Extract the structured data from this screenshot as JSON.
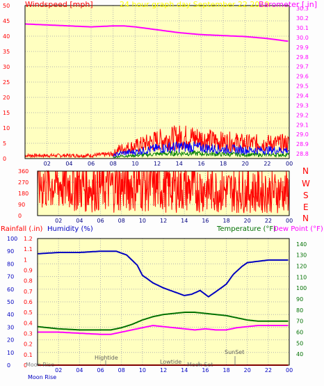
{
  "colors": {
    "plot_bg": "#ffffc0",
    "frame": "#000000",
    "grid": "#b0b0b0",
    "wind": "#ff0000",
    "gust_blue": "#0000ff",
    "gust_green": "#008000",
    "baro": "#ff00ff",
    "humidity": "#0000c0",
    "temperature": "#007000",
    "dewpoint": "#ff00ff",
    "rain": "#ff0000",
    "date": "#ffff00"
  },
  "header": {
    "windspeed_label": "Windspeed [mph]",
    "date_label": "24 hour graph day   September 22 2019",
    "barometer_label": "Barometer [.in]"
  },
  "compass": [
    "N",
    "W",
    "S",
    "E",
    "N"
  ],
  "bottom_header": {
    "rainfall_label": "Rainfall (.in)",
    "humidity_label": "Humidity (%)",
    "temperature_label": "Temperature (°F)",
    "dewpoint_label": "Dew Point (°F)"
  },
  "events": {
    "moon_rise": "Moon Rise",
    "moon_rise_bottom": "Moon Rise",
    "hightide": "Hightide",
    "lowtide": "Lowtide",
    "moon_set": "Moon Set",
    "sunset": "SunSet"
  },
  "chart_data": [
    {
      "type": "line",
      "panel": "wind-and-barometer",
      "x_ticks": [
        "02",
        "04",
        "06",
        "08",
        "10",
        "12",
        "14",
        "16",
        "18",
        "20",
        "22",
        "00"
      ],
      "xlim": [
        0,
        24
      ],
      "y_left": {
        "label": "Windspeed [mph]",
        "ticks": [
          0,
          5,
          10,
          15,
          20,
          25,
          30,
          35,
          40,
          45,
          50
        ],
        "ylim": [
          0,
          50
        ]
      },
      "y_right": {
        "label": "Barometer [.in]",
        "ticks": [
          28.8,
          28.9,
          29.0,
          29.1,
          29.2,
          29.3,
          29.4,
          29.5,
          29.6,
          29.7,
          29.8,
          29.9,
          30.0,
          30.1,
          30.2,
          30.3
        ],
        "ylim": [
          28.75,
          30.33
        ]
      },
      "series": [
        {
          "name": "Windspeed",
          "axis": "left",
          "style": "noisy",
          "noise": 0.6,
          "x": [
            0,
            6,
            8,
            8.5,
            10,
            11,
            12,
            13,
            14,
            15,
            16,
            17,
            18,
            19,
            20,
            21,
            22,
            23,
            24
          ],
          "values": [
            1,
            1,
            1.5,
            3,
            4,
            5,
            6,
            6.5,
            7,
            7,
            6.5,
            6,
            5.5,
            5.5,
            5,
            5,
            5,
            5,
            5
          ]
        },
        {
          "name": "Barometer",
          "axis": "right",
          "style": "smooth",
          "x": [
            0,
            2,
            4,
            6,
            8,
            9,
            10,
            12,
            14,
            16,
            18,
            20,
            22,
            24
          ],
          "values": [
            30.14,
            30.13,
            30.12,
            30.11,
            30.12,
            30.12,
            30.11,
            30.08,
            30.05,
            30.03,
            30.02,
            30.01,
            29.99,
            29.96
          ]
        }
      ]
    },
    {
      "type": "line",
      "panel": "wind-direction",
      "x_ticks": [
        "02",
        "04",
        "06",
        "08",
        "10",
        "12",
        "14",
        "16",
        "18",
        "20",
        "22",
        "00"
      ],
      "xlim": [
        0,
        24
      ],
      "y_left": {
        "ticks": [
          0,
          90,
          180,
          270,
          360
        ],
        "ylim": [
          0,
          360
        ]
      },
      "series": [
        {
          "name": "Wind Direction",
          "axis": "left",
          "style": "noisy",
          "noise": 0.9,
          "x": [
            0,
            4,
            4.1,
            8,
            8.5,
            10,
            12,
            14,
            16,
            18,
            20,
            22,
            24
          ],
          "values": [
            260,
            260,
            235,
            235,
            245,
            255,
            235,
            225,
            215,
            205,
            200,
            190,
            195
          ]
        }
      ]
    },
    {
      "type": "line",
      "panel": "humidity-temperature",
      "x_ticks": [
        "02",
        "04",
        "06",
        "08",
        "10",
        "12",
        "14",
        "16",
        "18",
        "20",
        "22",
        "00"
      ],
      "xlim": [
        0,
        24
      ],
      "y_left": {
        "label": "Humidity (%)",
        "ticks": [
          0,
          10,
          20,
          30,
          40,
          50,
          60,
          70,
          80,
          90,
          100
        ],
        "ylim": [
          0,
          100
        ]
      },
      "y_left_inner": {
        "label": "Rainfall (.in)",
        "ticks": [
          0,
          0.1,
          0.2,
          0.3,
          0.4,
          0.5,
          0.6,
          0.7,
          0.8,
          0.9,
          1,
          1.1,
          1.2
        ],
        "ylim": [
          0,
          1.2
        ]
      },
      "y_right": {
        "label": "Temperature (°F)",
        "ticks": [
          40,
          50,
          60,
          70,
          80,
          90,
          100,
          110,
          120,
          130,
          140
        ],
        "ylim": [
          30,
          145
        ]
      },
      "series": [
        {
          "name": "Humidity",
          "axis": "left",
          "style": "smooth",
          "x": [
            0,
            2,
            4,
            6,
            7.5,
            8.5,
            9.5,
            10,
            11,
            12,
            13,
            14,
            14.7,
            15.5,
            16.3,
            17,
            18,
            18.7,
            19.5,
            20,
            21,
            22,
            23,
            24
          ],
          "values": [
            88,
            89,
            89,
            90,
            90,
            87,
            79,
            71,
            65,
            61,
            58,
            55,
            56,
            59,
            54,
            58,
            64,
            72,
            78,
            81,
            82,
            83,
            83,
            83
          ]
        },
        {
          "name": "Temperature",
          "axis": "right",
          "style": "smooth",
          "x": [
            0,
            1,
            2,
            4,
            6,
            7,
            8,
            9,
            10,
            11,
            12,
            13,
            14,
            15,
            16,
            17,
            18,
            19,
            20,
            21,
            22,
            23,
            24
          ],
          "values": [
            65,
            64,
            63,
            62,
            62,
            62,
            64,
            67,
            71,
            74,
            76,
            77,
            78,
            78,
            77,
            76,
            75,
            73,
            71,
            70,
            70,
            70,
            70
          ]
        },
        {
          "name": "Dew Point",
          "axis": "right",
          "style": "smooth",
          "x": [
            0,
            2,
            4,
            6,
            7,
            8,
            9,
            10,
            11,
            12,
            13,
            14,
            15,
            16,
            17,
            18,
            19,
            20,
            21,
            22,
            23,
            24
          ],
          "values": [
            60,
            60,
            59,
            58,
            58,
            60,
            62,
            64,
            66,
            65,
            64,
            63,
            62,
            63,
            62,
            62,
            64,
            65,
            66,
            66,
            66,
            66
          ]
        },
        {
          "name": "Rainfall",
          "axis": "left_inner",
          "style": "smooth",
          "x": [
            0,
            24
          ],
          "values": [
            0,
            0
          ]
        }
      ]
    }
  ]
}
